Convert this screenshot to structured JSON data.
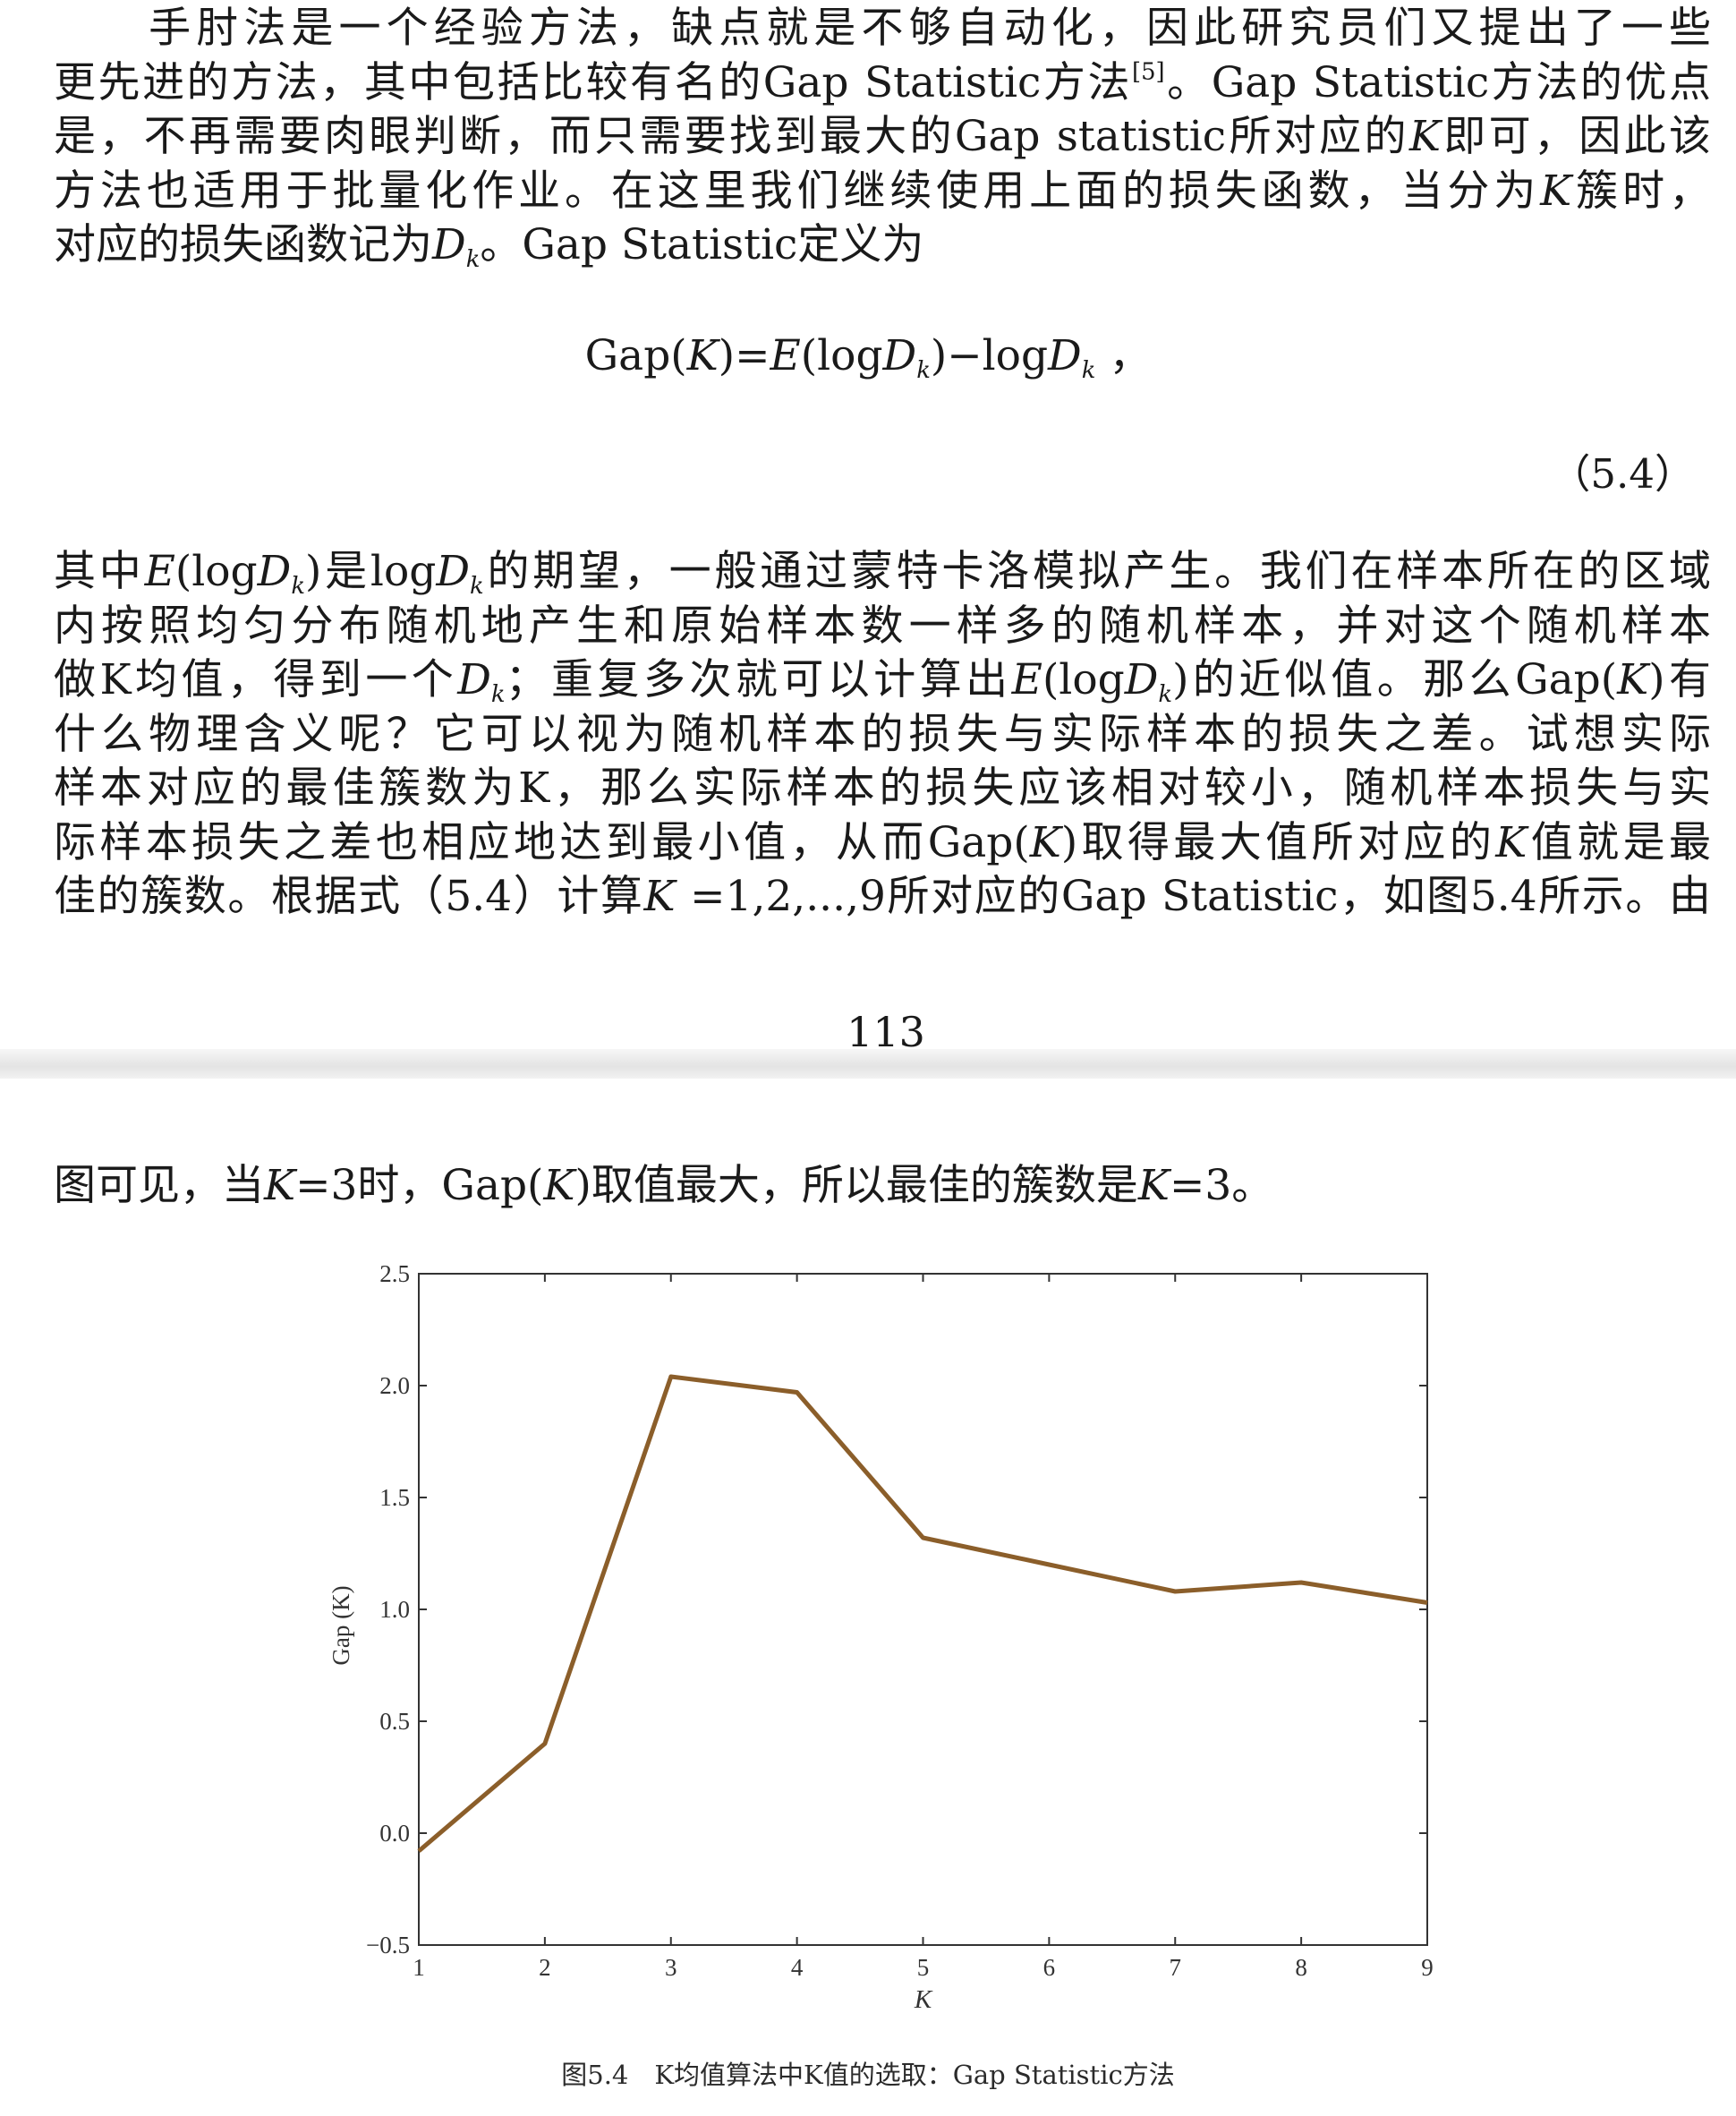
{
  "page1": {
    "para1_lines": [
      "　　手肘法是一个经验方法，缺点就是不够自动化，因此研究员们又提出了一些",
      "更先进的方法，其中包括比较有名的Gap Statistic方法",
      "是，不再需要肉眼判断，而只需要找到最大的Gap statistic所对应的",
      "方法也适用于批量化作业。在这里我们继续使用上面的损失函数，当分为",
      "对应的损失函数记为"
    ],
    "para1_ref": "[5]",
    "para1_line2_tail": "。Gap Statistic方法的优点",
    "para1_line3_K": "K",
    "para1_line3_tail": "即可，因此该",
    "para1_line4_K": "K",
    "para1_line4_tail": "簇时，",
    "para1_line5_D": "D",
    "para1_line5_k": "k",
    "para1_line5_tail": "。Gap Statistic定义为",
    "formula": {
      "gap": "Gap(",
      "K": "K",
      "mid": ")=",
      "E": "E",
      "log1": "(log",
      "D1": "D",
      "k1": "k",
      "close": ")−log",
      "D2": "D",
      "k2": "k",
      "end": " ，"
    },
    "equation_number": "（5.4）",
    "para2": {
      "l1a": "其中",
      "l1E": "E",
      "l1b": "(log",
      "l1D": "D",
      "l1k": "k",
      "l1c": ")是log",
      "l1D2": "D",
      "l1k2": "k",
      "l1d": "的期望，一般通过蒙特卡洛模拟产生。我们在样本所在的区域",
      "l2": "内按照均匀分布随机地产生和原始样本数一样多的随机样本，并对这个随机样本",
      "l3a": "做K均值，得到一个",
      "l3D": "D",
      "l3k": "k",
      "l3b": "；重复多次就可以计算出",
      "l3E": "E",
      "l3c": "(log",
      "l3D2": "D",
      "l3k2": "k",
      "l3d": ")的近似值。那么Gap(",
      "l3K": "K",
      "l3e": ")有",
      "l4": "什么物理含义呢？它可以视为随机样本的损失与实际样本的损失之差。试想实际",
      "l5": "样本对应的最佳簇数为K，那么实际样本的损失应该相对较小，随机样本损失与实",
      "l6a": "际样本损失之差也相应地达到最小值，从而Gap(",
      "l6K": "K",
      "l6b": ")取得最大值所对应的",
      "l6K2": "K",
      "l6c": "值就是最",
      "l7a": "佳的簇数。根据式（5.4）计算",
      "l7K": "K",
      "l7b": " =1,2,...,9所对应的Gap Statistic，如图5.4所示。由"
    },
    "page_number": "113"
  },
  "page2": {
    "line_a": "图可见，当",
    "line_K1": "K",
    "line_b": "=3时，Gap(",
    "line_K2": "K",
    "line_c": ")取值最大，所以最佳的簇数是",
    "line_K3": "K",
    "line_d": "=3。",
    "caption": "图5.4　K均值算法中K值的选取：Gap Statistic方法"
  },
  "chart_data": {
    "type": "line",
    "x": [
      1,
      2,
      3,
      4,
      5,
      6,
      7,
      8,
      9
    ],
    "series": [
      {
        "values": [
          -0.08,
          0.4,
          2.04,
          1.97,
          1.32,
          1.2,
          1.08,
          1.12,
          1.03
        ]
      }
    ],
    "xlabel": "K",
    "ylabel": "Gap (K)",
    "xlim": [
      1,
      9
    ],
    "ylim": [
      -0.5,
      2.5
    ],
    "xticks": [
      "1",
      "2",
      "3",
      "4",
      "5",
      "6",
      "7",
      "8",
      "9"
    ],
    "yticks": [
      "−0.5",
      "0.0",
      "0.5",
      "1.0",
      "1.5",
      "2.0",
      "2.5"
    ],
    "ytick_values": [
      -0.5,
      0.0,
      0.5,
      1.0,
      1.5,
      2.0,
      2.5
    ],
    "grid": false,
    "line_color": "#8B5E2A"
  }
}
